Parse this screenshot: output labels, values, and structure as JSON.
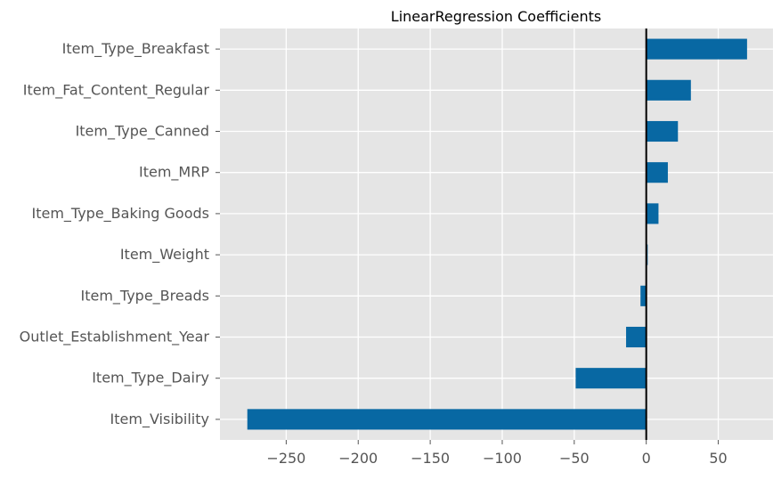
{
  "chart_data": {
    "type": "bar",
    "orientation": "horizontal",
    "title": "LinearRegression Coefficients",
    "xlabel": "",
    "ylabel": "",
    "categories": [
      "Item_Type_Breakfast",
      "Item_Fat_Content_Regular",
      "Item_Type_Canned",
      "Item_MRP",
      "Item_Type_Baking Goods",
      "Item_Weight",
      "Item_Type_Breads",
      "Outlet_Establishment_Year",
      "Item_Type_Dairy",
      "Item_Visibility"
    ],
    "values": [
      70,
      31,
      22,
      15,
      8.5,
      1,
      -4,
      -14,
      -49,
      -277
    ],
    "xlim": [
      -296,
      88
    ],
    "xticks": [
      -250,
      -200,
      -150,
      -100,
      -50,
      0,
      50
    ],
    "xtick_labels": [
      "−250",
      "−200",
      "−150",
      "−100",
      "−50",
      "0",
      "50"
    ],
    "grid": true,
    "legend": "none",
    "zero_line": true,
    "colors": {
      "bar": "#0868a3",
      "plot_background": "#e5e5e5",
      "grid": "#ffffff",
      "zero_line": "#000000",
      "tick_label": "#555555",
      "title": "#000000"
    }
  }
}
